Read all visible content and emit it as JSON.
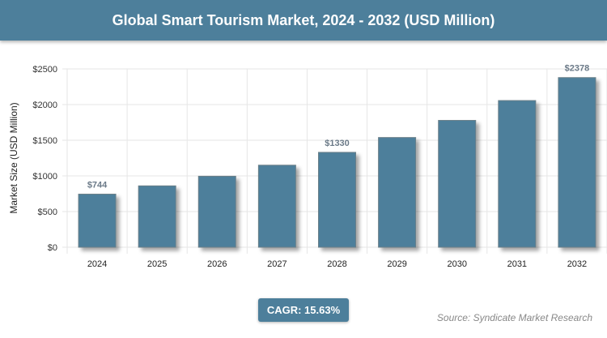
{
  "chart_data": {
    "type": "bar",
    "title": "Global Smart Tourism Market, 2024 - 2032 (USD Million)",
    "xlabel": "",
    "ylabel": "Market Size (USD Million)",
    "categories": [
      "2024",
      "2025",
      "2026",
      "2027",
      "2028",
      "2029",
      "2030",
      "2031",
      "2032"
    ],
    "values": [
      744,
      860,
      995,
      1150,
      1330,
      1538,
      1778,
      2056,
      2378
    ],
    "data_labels": {
      "0": "$744",
      "4": "$1330",
      "8": "$2378"
    },
    "ylim": [
      0,
      2500
    ],
    "yticks": [
      "$0",
      "$500",
      "$1000",
      "$1500",
      "$2000",
      "$2500"
    ],
    "grid": true,
    "bar_color": "#4d7f9b"
  },
  "cagr_label": "CAGR: 15.63%",
  "source": "Source: Syndicate Market Research"
}
